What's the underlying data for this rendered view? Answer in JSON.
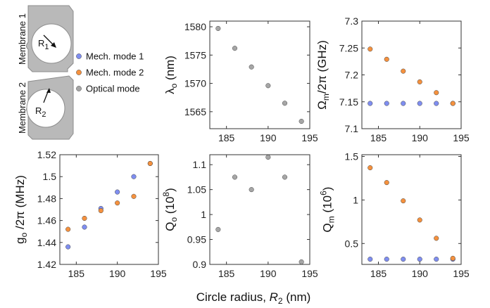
{
  "colors": {
    "mech1": "#7f8ef0",
    "mech2": "#f5913e",
    "optical": "#a6a6a6"
  },
  "legend": [
    {
      "label": "Mech. mode 1",
      "color": "#7f8ef0"
    },
    {
      "label": "Mech. mode 2",
      "color": "#f5913e"
    },
    {
      "label": "Optical mode",
      "color": "#a6a6a6"
    }
  ],
  "inset": {
    "membrane1": "Membrane 1",
    "membrane2": "Membrane 2",
    "r1": "R",
    "r1_sub": "1",
    "r2": "R",
    "r2_sub": "2"
  },
  "shared_xlabel": {
    "main": "Circle radius, ",
    "sym": "R",
    "sub": "2",
    "unit": " (nm)"
  },
  "chart_data": [
    {
      "type": "scatter",
      "ylabel": "λo (nm)",
      "xlim": [
        183,
        195
      ],
      "ylim": [
        1562,
        1581
      ],
      "xticks": [
        "185",
        "190",
        "195"
      ],
      "yticks": [
        "1565",
        "1570",
        "1575",
        "1580"
      ],
      "series": [
        {
          "color": "optical",
          "x": [
            184,
            186,
            188,
            190,
            192,
            194
          ],
          "y": [
            1579.7,
            1576.2,
            1572.9,
            1569.6,
            1566.5,
            1563.3
          ]
        }
      ]
    },
    {
      "type": "scatter",
      "ylabel": "Ωm/2π (GHz)",
      "xlim": [
        183,
        195
      ],
      "ylim": [
        7.1,
        7.3
      ],
      "xticks": [
        "185",
        "190",
        "195"
      ],
      "yticks": [
        "7.1",
        "7.15",
        "7.2",
        "7.25",
        "7.3"
      ],
      "series": [
        {
          "name": "Mech. mode 1",
          "color": "mech1",
          "x": [
            184,
            186,
            188,
            190,
            192,
            194
          ],
          "y": [
            7.147,
            7.147,
            7.147,
            7.147,
            7.147,
            7.147
          ]
        },
        {
          "name": "Mech. mode 2",
          "color": "mech2",
          "x": [
            184,
            186,
            188,
            190,
            192,
            194
          ],
          "y": [
            7.248,
            7.229,
            7.207,
            7.187,
            7.167,
            7.147
          ]
        }
      ]
    },
    {
      "type": "scatter",
      "ylabel": "go /2π (MHz)",
      "xlim": [
        183,
        195
      ],
      "ylim": [
        1.42,
        1.52
      ],
      "xticks": [
        "185",
        "190",
        "195"
      ],
      "yticks": [
        "1.42",
        "1.44",
        "1.46",
        "1.48",
        "1.5",
        "1.52"
      ],
      "series": [
        {
          "name": "Mech. mode 1",
          "color": "mech1",
          "x": [
            184,
            186,
            188,
            190,
            192,
            194
          ],
          "y": [
            1.436,
            1.454,
            1.471,
            1.486,
            1.5,
            1.512
          ]
        },
        {
          "name": "Mech. mode 2",
          "color": "mech2",
          "x": [
            184,
            186,
            188,
            190,
            192,
            194
          ],
          "y": [
            1.452,
            1.462,
            1.469,
            1.476,
            1.482,
            1.512
          ]
        }
      ]
    },
    {
      "type": "scatter",
      "ylabel": "Qo (10^8)",
      "xlim": [
        183,
        195
      ],
      "ylim": [
        0.9,
        1.12
      ],
      "xticks": [
        "185",
        "190",
        "195"
      ],
      "yticks": [
        "0.9",
        "0.95",
        "1",
        "1.05",
        "1.1"
      ],
      "series": [
        {
          "color": "optical",
          "x": [
            184,
            186,
            188,
            190,
            192,
            194
          ],
          "y": [
            0.97,
            1.075,
            1.05,
            1.115,
            1.075,
            0.905
          ]
        }
      ]
    },
    {
      "type": "scatter",
      "ylabel": "Qm (10^6)",
      "xlim": [
        183,
        195
      ],
      "ylim": [
        0.26,
        1.52
      ],
      "xticks": [
        "185",
        "190",
        "195"
      ],
      "yticks": [
        "0.5",
        "1",
        "1.5"
      ],
      "series": [
        {
          "name": "Mech. mode 1",
          "color": "mech1",
          "x": [
            184,
            186,
            188,
            190,
            192,
            194
          ],
          "y": [
            0.32,
            0.32,
            0.32,
            0.32,
            0.32,
            0.32
          ]
        },
        {
          "name": "Mech. mode 2",
          "color": "mech2",
          "x": [
            184,
            186,
            188,
            190,
            192,
            194
          ],
          "y": [
            1.37,
            1.2,
            0.99,
            0.77,
            0.56,
            0.33
          ]
        }
      ]
    }
  ],
  "label_parts": [
    {
      "main": "λ",
      "sub": "o",
      "rest": " (nm)"
    },
    {
      "main": "Ω",
      "sub": "m",
      "rest": "/2π (GHz)"
    },
    {
      "main": "g",
      "sub": "o",
      "rest": " /2π (MHz)"
    },
    {
      "main": "Q",
      "sub": "o",
      "rest": " (10",
      "sup": "8",
      "end": ")"
    },
    {
      "main": "Q",
      "sub": "m",
      "rest": " (10",
      "sup": "6",
      "end": ")"
    }
  ]
}
